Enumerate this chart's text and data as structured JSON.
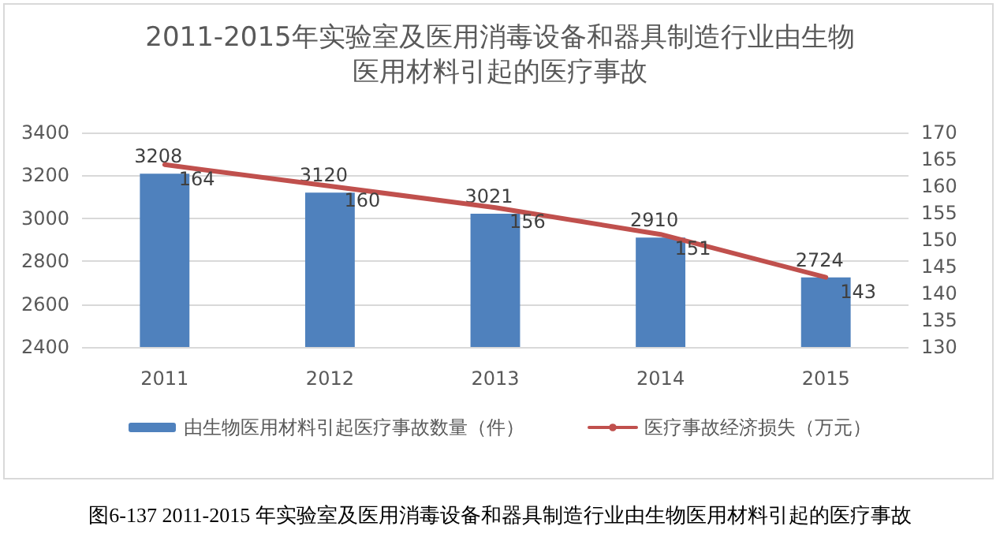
{
  "chart_data": {
    "type": "bar",
    "title": "2011-2015年实验室及医用消毒设备和器具制造行业由生物医用材料引起的医疗事故",
    "categories": [
      "2011",
      "2012",
      "2013",
      "2014",
      "2015"
    ],
    "series": [
      {
        "name": "由生物医用材料引起医疗事故数量（件）",
        "color": "#4f81bd",
        "values": [
          3208,
          3120,
          3021,
          2910,
          2724
        ]
      },
      {
        "name": "医疗事故经济损失（万元）",
        "type": "line",
        "axis": "y2",
        "color": "#c0504d",
        "values": [
          164,
          160,
          156,
          151,
          143
        ]
      }
    ],
    "ylim": [
      2400,
      3400
    ],
    "yticks": [
      2400,
      2600,
      2800,
      3000,
      3200,
      3400
    ],
    "y2lim": [
      130,
      170
    ],
    "y2ticks": [
      130,
      135,
      140,
      145,
      150,
      155,
      160,
      165,
      170
    ],
    "data_labels": true,
    "grid": "y",
    "legend": "bottom",
    "marker": "none",
    "annotations": [
      "图6-137 2011-2015 年实验室及医用消毒设备和器具制造行业由生物医用材料引起的医疗事故"
    ]
  }
}
